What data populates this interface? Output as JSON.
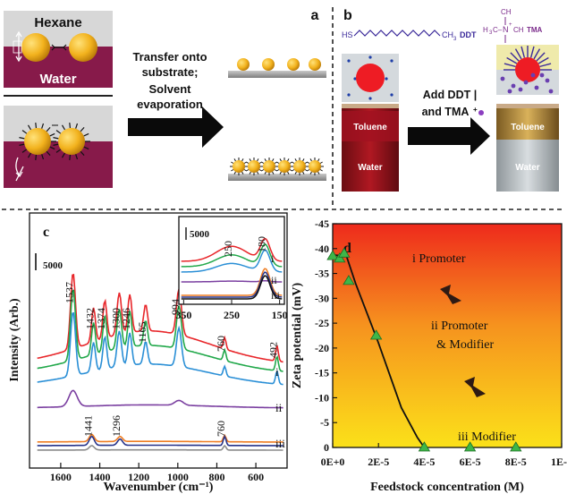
{
  "panel_a": {
    "label": "a",
    "hexane": "Hexane",
    "water": "Water",
    "step_lines": [
      "Transfer onto",
      "substrate;",
      "Solvent",
      "evaporation"
    ]
  },
  "panel_b": {
    "label": "b",
    "ddt_formula": {
      "hs": "HS",
      "ch3": "CH",
      "three": "3",
      "ddt": "DDT"
    },
    "tma_formula": {
      "ch3_top": "CH",
      "h3c": "H",
      "n": "N",
      "ch3_right": "CH",
      "ch3_bottom": "CH",
      "tma": "TMA"
    },
    "reagent_lines": [
      "Add DDT |",
      "and TMA"
    ],
    "toluene": "Toluene",
    "water": "Water"
  },
  "chart_data": [
    {
      "id": "c",
      "type": "line",
      "panel_label": "c",
      "xlabel": "Wavenumber (cm⁻¹)",
      "ylabel": "Intensity (Arb.)",
      "x_ticks": [
        1600,
        1400,
        1200,
        1000,
        800,
        600
      ],
      "xlim": [
        1760,
        440
      ],
      "scale_bar": "5000",
      "series_labels": [
        "i",
        "ii",
        "iii"
      ],
      "peak_labels": [
        "1537",
        "1432",
        "1374",
        "1300",
        "1246",
        "1165",
        "994",
        "760",
        "492",
        "1441",
        "1296",
        "760"
      ],
      "colors": {
        "red": "#e8262a",
        "green": "#21a84a",
        "blue": "#2a8fd6",
        "purple": "#7a3fa0",
        "orange": "#ef7d22",
        "navy": "#26338a",
        "gray": "#8c8c8c"
      },
      "inset": {
        "x_ticks": [
          350,
          250,
          150
        ],
        "xlim": [
          360,
          140
        ],
        "scale_bar": "5000",
        "peak_labels": [
          "250",
          "180"
        ],
        "series_labels": [
          "i",
          "ii",
          "iii"
        ]
      }
    },
    {
      "id": "d",
      "type": "scatter",
      "panel_label": "d",
      "xlabel": "Feedstock concentration (M)",
      "ylabel": "Zeta potential (mV)",
      "x_ticks": [
        "0E+0",
        "2E-5",
        "4E-5",
        "6E-5",
        "8E-5",
        "1E-4"
      ],
      "y_ticks": [
        "-45",
        "-40",
        "-35",
        "-30",
        "-25",
        "-20",
        "-15",
        "-10",
        "-5",
        "0"
      ],
      "xlim": [
        0,
        0.0001
      ],
      "ylim": [
        -45,
        0
      ],
      "points": [
        {
          "x": 0,
          "y": -38.5
        },
        {
          "x": 3e-06,
          "y": -38
        },
        {
          "x": 5e-06,
          "y": -39
        },
        {
          "x": 7e-06,
          "y": -33.5
        },
        {
          "x": 1.9e-05,
          "y": -22.5
        },
        {
          "x": 4e-05,
          "y": 0
        },
        {
          "x": 6e-05,
          "y": 0
        },
        {
          "x": 8e-05,
          "y": 0
        }
      ],
      "annotations": [
        "i Promoter",
        "ii Promoter",
        "& Modifier",
        "iii Modifier"
      ],
      "marker_color": "#3fb649"
    }
  ]
}
